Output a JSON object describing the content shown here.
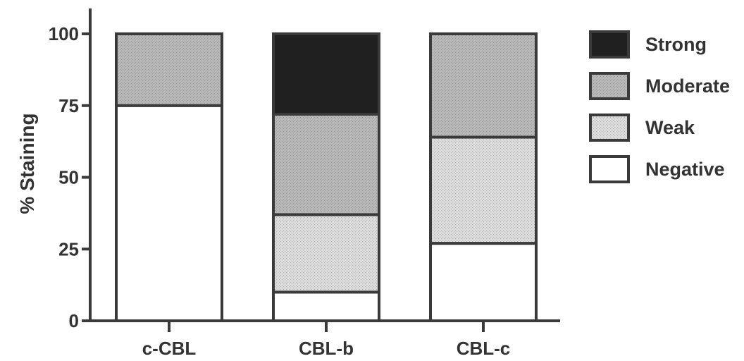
{
  "chart_data": {
    "type": "bar",
    "stacked": true,
    "title": "",
    "xlabel": "",
    "ylabel": "% Staining",
    "ylim": [
      0,
      100
    ],
    "yticks": [
      0,
      25,
      50,
      75,
      100
    ],
    "categories": [
      "c-CBL",
      "CBL-b",
      "CBL-c"
    ],
    "series": [
      {
        "name": "Negative",
        "values": [
          75,
          10,
          27
        ],
        "color": "#ffffff"
      },
      {
        "name": "Weak",
        "values": [
          0,
          27,
          37
        ],
        "color": "#dcdcdc"
      },
      {
        "name": "Moderate",
        "values": [
          25,
          35,
          36
        ],
        "color": "#b8b8b8"
      },
      {
        "name": "Strong",
        "values": [
          0,
          28,
          0
        ],
        "color": "#202020"
      }
    ],
    "legend_order": [
      "Strong",
      "Moderate",
      "Weak",
      "Negative"
    ],
    "legend_position": "right",
    "grid": false
  }
}
